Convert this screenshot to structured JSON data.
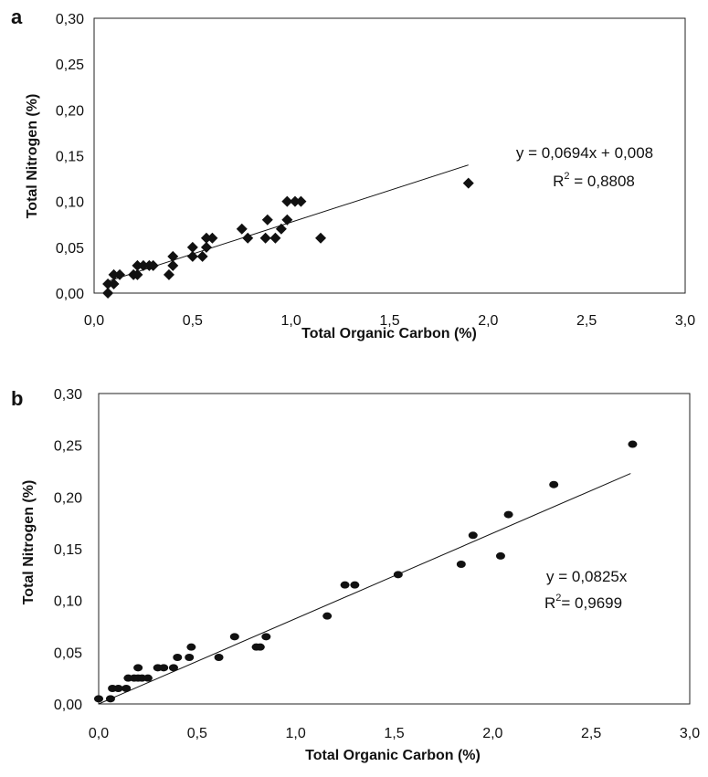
{
  "chart_data": [
    {
      "type": "scatter",
      "panel_label": "a",
      "xlabel": "Total Organic Carbon (%)",
      "ylabel": "Total Nitrogen (%)",
      "xlim": [
        0,
        3
      ],
      "ylim": [
        0,
        0.3
      ],
      "xticks": [
        "0,0",
        "0,5",
        "1,0",
        "1,5",
        "2,0",
        "2,5",
        "3,0"
      ],
      "yticks": [
        "0,00",
        "0,05",
        "0,10",
        "0,15",
        "0,20",
        "0,25",
        "0,30"
      ],
      "marker": "diamond",
      "grid": false,
      "trendline": {
        "slope": 0.0694,
        "intercept": 0.008,
        "x_start": 0.06,
        "x_end": 1.9
      },
      "equation": "y = 0,0694x + 0,008",
      "r2_label": "R",
      "r2_sup": "2",
      "r2_value": " = 0,8808",
      "series": [
        {
          "points": [
            [
              0.07,
              0.0
            ],
            [
              0.07,
              0.01
            ],
            [
              0.1,
              0.01
            ],
            [
              0.1,
              0.02
            ],
            [
              0.13,
              0.02
            ],
            [
              0.2,
              0.02
            ],
            [
              0.22,
              0.02
            ],
            [
              0.22,
              0.03
            ],
            [
              0.25,
              0.03
            ],
            [
              0.28,
              0.03
            ],
            [
              0.3,
              0.03
            ],
            [
              0.38,
              0.02
            ],
            [
              0.4,
              0.03
            ],
            [
              0.4,
              0.04
            ],
            [
              0.5,
              0.04
            ],
            [
              0.5,
              0.05
            ],
            [
              0.55,
              0.04
            ],
            [
              0.57,
              0.05
            ],
            [
              0.57,
              0.06
            ],
            [
              0.6,
              0.06
            ],
            [
              0.75,
              0.07
            ],
            [
              0.78,
              0.06
            ],
            [
              0.87,
              0.06
            ],
            [
              0.88,
              0.08
            ],
            [
              0.92,
              0.06
            ],
            [
              0.95,
              0.07
            ],
            [
              0.98,
              0.08
            ],
            [
              0.98,
              0.1
            ],
            [
              1.02,
              0.1
            ],
            [
              1.05,
              0.1
            ],
            [
              1.15,
              0.06
            ],
            [
              1.9,
              0.12
            ]
          ]
        }
      ]
    },
    {
      "type": "scatter",
      "panel_label": "b",
      "xlabel": "Total Organic Carbon (%)",
      "ylabel": "Total Nitrogen (%)",
      "xlim": [
        0,
        3
      ],
      "ylim": [
        0,
        0.3
      ],
      "xticks": [
        "0,0",
        "0,5",
        "1,0",
        "1,5",
        "2,0",
        "2,5",
        "3,0"
      ],
      "yticks": [
        "0,00",
        "0,05",
        "0,10",
        "0,15",
        "0,20",
        "0,25",
        "0,30"
      ],
      "marker": "circle",
      "grid": false,
      "trendline": {
        "slope": 0.0825,
        "intercept": 0,
        "x_start": 0,
        "x_end": 2.7
      },
      "equation": "y = 0,0825x",
      "r2_label": "R",
      "r2_sup": "2",
      "r2_value": "= 0,9699",
      "series": [
        {
          "points": [
            [
              0.0,
              0.005
            ],
            [
              0.06,
              0.005
            ],
            [
              0.07,
              0.015
            ],
            [
              0.1,
              0.015
            ],
            [
              0.14,
              0.015
            ],
            [
              0.15,
              0.025
            ],
            [
              0.18,
              0.025
            ],
            [
              0.2,
              0.025
            ],
            [
              0.2,
              0.035
            ],
            [
              0.22,
              0.025
            ],
            [
              0.25,
              0.025
            ],
            [
              0.3,
              0.035
            ],
            [
              0.33,
              0.035
            ],
            [
              0.38,
              0.035
            ],
            [
              0.4,
              0.045
            ],
            [
              0.46,
              0.045
            ],
            [
              0.47,
              0.055
            ],
            [
              0.61,
              0.045
            ],
            [
              0.69,
              0.065
            ],
            [
              0.8,
              0.055
            ],
            [
              0.82,
              0.055
            ],
            [
              0.85,
              0.065
            ],
            [
              1.16,
              0.085
            ],
            [
              1.25,
              0.115
            ],
            [
              1.3,
              0.115
            ],
            [
              1.52,
              0.125
            ],
            [
              1.84,
              0.135
            ],
            [
              1.9,
              0.163
            ],
            [
              2.04,
              0.143
            ],
            [
              2.08,
              0.183
            ],
            [
              2.31,
              0.212
            ],
            [
              2.71,
              0.251
            ]
          ]
        }
      ]
    }
  ]
}
